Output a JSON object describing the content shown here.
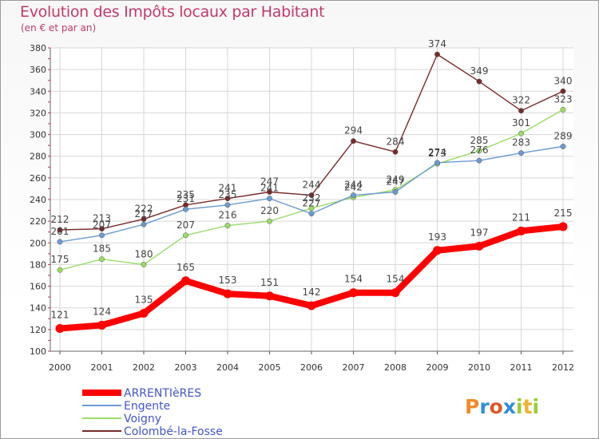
{
  "chart_data": {
    "type": "line",
    "title": "Evolution des Impôts locaux par Habitant",
    "subtitle": "(en € et par an)",
    "x": [
      "2000",
      "2001",
      "2002",
      "2003",
      "2004",
      "2005",
      "2006",
      "2007",
      "2008",
      "2009",
      "2010",
      "2011",
      "2012"
    ],
    "ylim": [
      100,
      380
    ],
    "yticks": [
      100,
      120,
      140,
      160,
      180,
      200,
      220,
      240,
      260,
      280,
      300,
      320,
      340,
      360,
      380
    ],
    "grid": true,
    "legend_position": "bottom-left",
    "series": [
      {
        "name": "ARRENTIèRES",
        "color": "#ff0000",
        "values": [
          121,
          124,
          135,
          165,
          153,
          151,
          142,
          154,
          154,
          193,
          197,
          211,
          215
        ]
      },
      {
        "name": "Engente",
        "color": "#6b9bd2",
        "values": [
          201,
          207,
          217,
          231,
          235,
          241,
          227,
          244,
          247,
          274,
          276,
          283,
          289
        ]
      },
      {
        "name": "Voigny",
        "color": "#99dd66",
        "values": [
          175,
          185,
          180,
          207,
          216,
          220,
          232,
          242,
          249,
          273,
          285,
          301,
          323
        ]
      },
      {
        "name": "Colombé-la-Fosse",
        "color": "#7a2a2a",
        "values": [
          212,
          213,
          222,
          235,
          241,
          247,
          244,
          294,
          284,
          374,
          349,
          322,
          340
        ]
      }
    ]
  },
  "logo": {
    "letters": [
      "P",
      "r",
      "o",
      "x",
      "i",
      "t",
      "i"
    ],
    "colors": [
      "#f08a2a",
      "#2f8fd8",
      "#e05a2a",
      "#2f8fd8",
      "#9acd32",
      "#f0b030",
      "#9acd32"
    ]
  }
}
